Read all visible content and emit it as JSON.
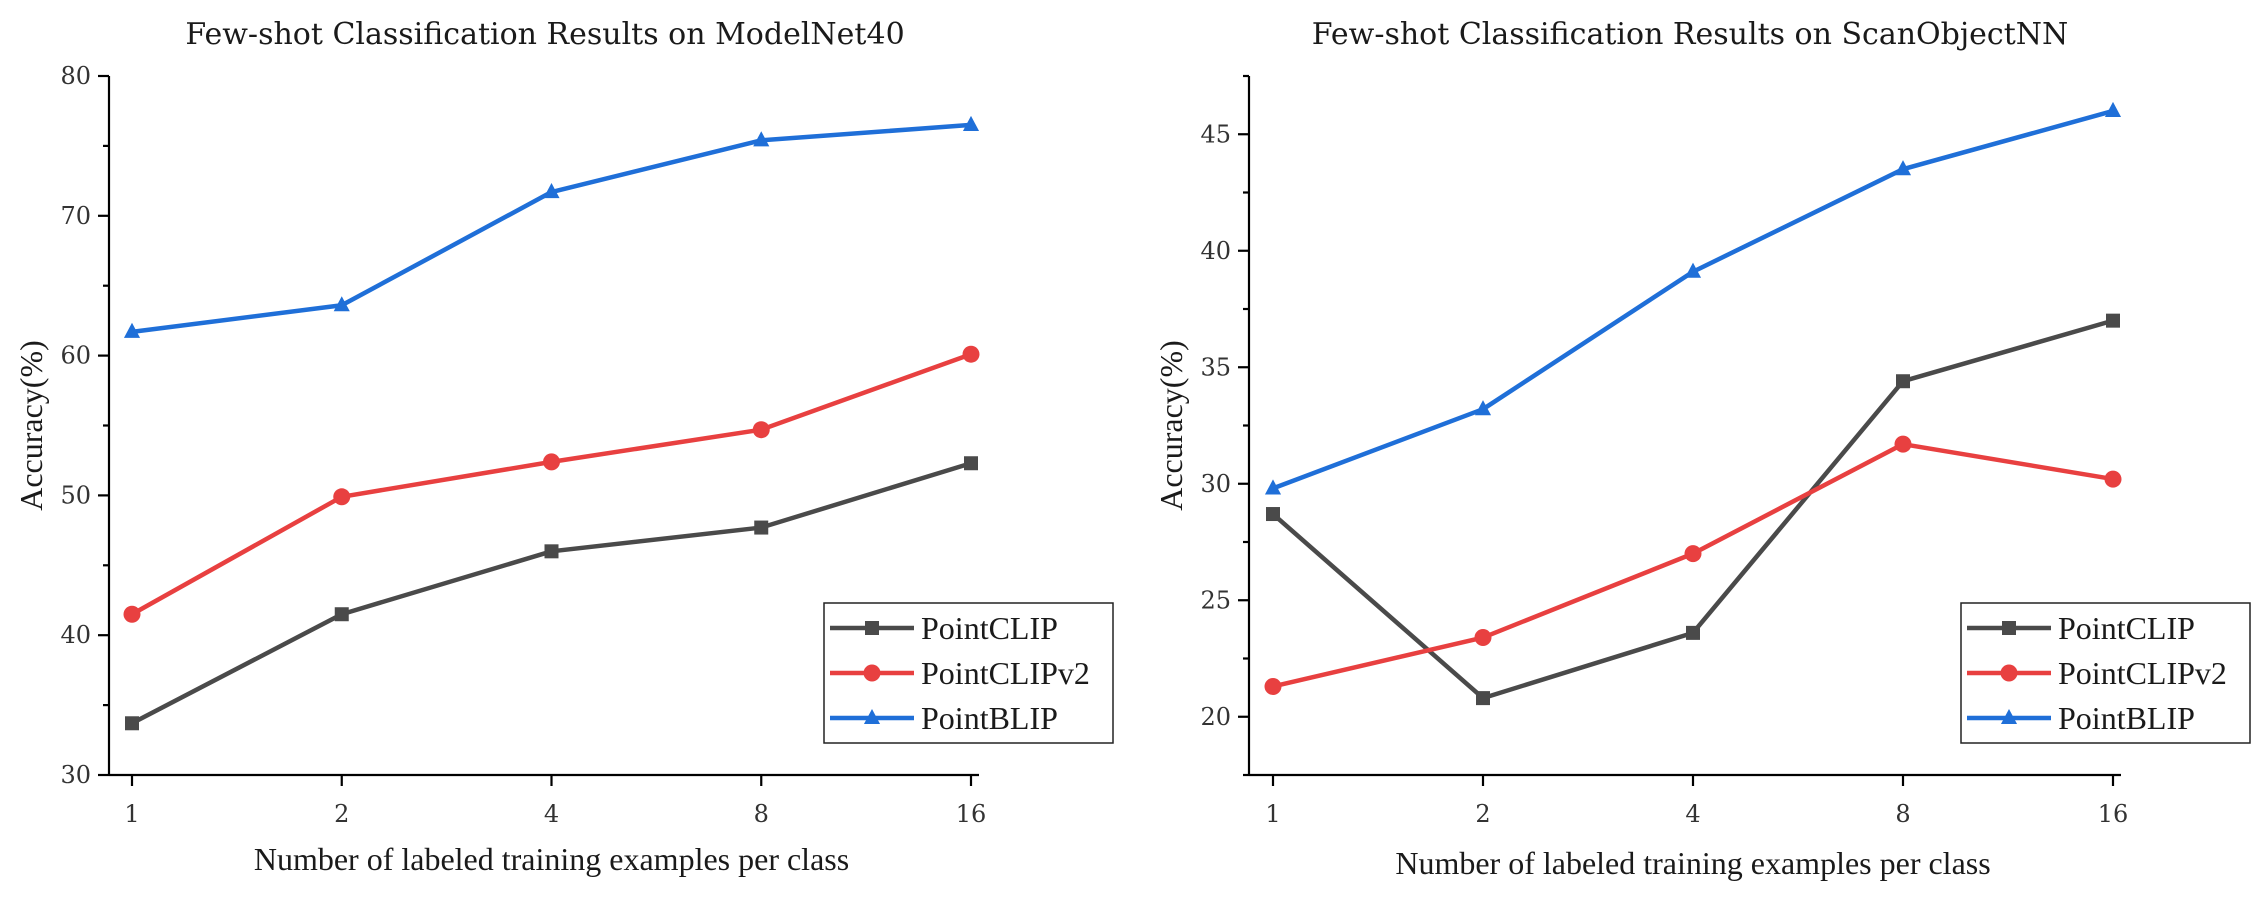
{
  "chart_data": [
    {
      "type": "line",
      "title": "Few-shot Classification Results on ModelNet40",
      "xlabel": "Number of labeled training examples per class",
      "ylabel": "Accuracy(%)",
      "categories": [
        "1",
        "2",
        "4",
        "8",
        "16"
      ],
      "ylim": [
        30,
        80
      ],
      "yticks": [
        "30",
        "40",
        "50",
        "60",
        "70",
        "80"
      ],
      "legend_position": "bottom-right",
      "series": [
        {
          "name": "PointCLIP",
          "marker": "square",
          "color": "#4a4a4a",
          "values": [
            33.7,
            41.5,
            46.0,
            47.7,
            52.3
          ]
        },
        {
          "name": "PointCLIPv2",
          "marker": "circle",
          "color": "#e84040",
          "values": [
            41.5,
            49.9,
            52.4,
            54.7,
            60.1
          ]
        },
        {
          "name": "PointBLIP",
          "marker": "triangle",
          "color": "#1f6fd8",
          "values": [
            61.7,
            63.6,
            71.7,
            75.4,
            76.5
          ]
        }
      ]
    },
    {
      "type": "line",
      "title": "Few-shot Classification Results on ScanObjectNN",
      "xlabel": "Number of labeled training examples per class",
      "ylabel": "Accuracy(%)",
      "categories": [
        "1",
        "2",
        "4",
        "8",
        "16"
      ],
      "ylim": [
        17.5,
        47.5
      ],
      "yticks": [
        "20",
        "25",
        "30",
        "35",
        "40",
        "45"
      ],
      "legend_position": "bottom-right",
      "series": [
        {
          "name": "PointCLIP",
          "marker": "square",
          "color": "#4a4a4a",
          "values": [
            28.7,
            20.8,
            23.6,
            34.4,
            37.0
          ]
        },
        {
          "name": "PointCLIPv2",
          "marker": "circle",
          "color": "#e84040",
          "values": [
            21.3,
            23.4,
            27.0,
            31.7,
            30.2
          ]
        },
        {
          "name": "PointBLIP",
          "marker": "triangle",
          "color": "#1f6fd8",
          "values": [
            29.8,
            33.2,
            39.1,
            43.5,
            46.0
          ]
        }
      ]
    }
  ]
}
